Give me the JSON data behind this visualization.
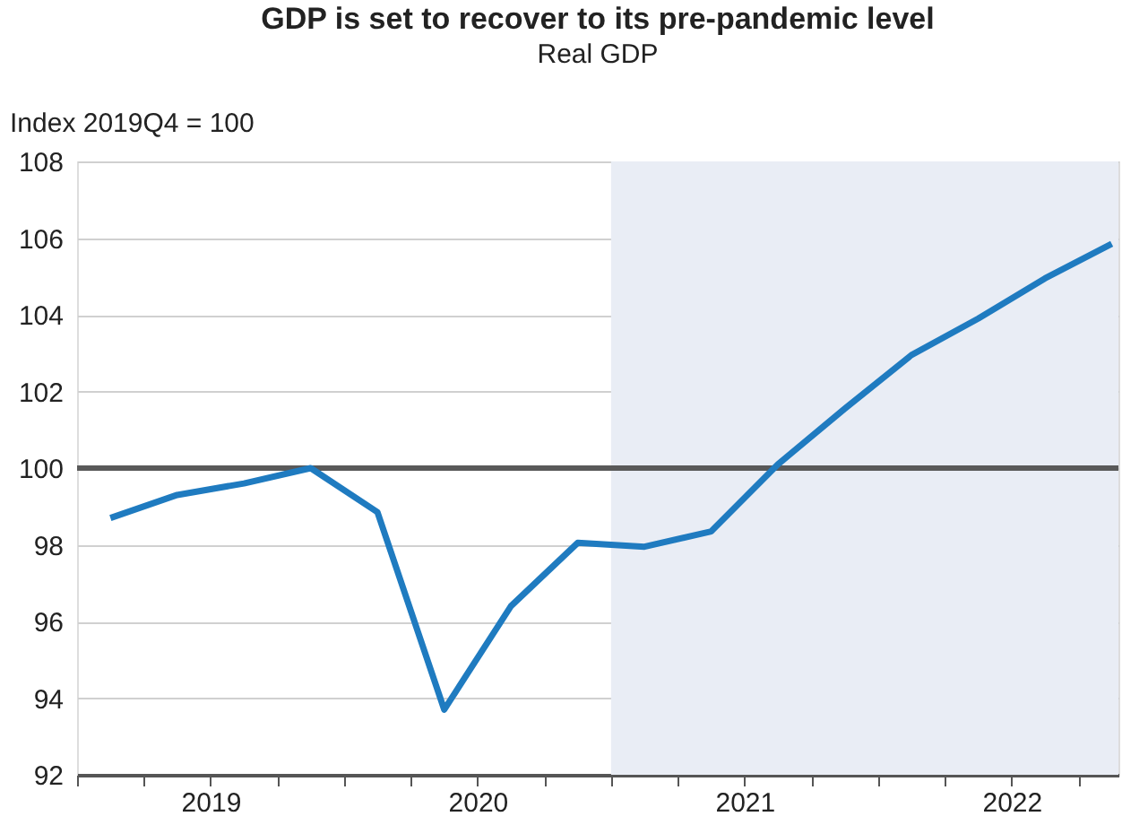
{
  "chart_data": {
    "type": "line",
    "title": "GDP is set to recover to its pre-pandemic level",
    "subtitle": "Real GDP",
    "ylabel": "Index 2019Q4 = 100",
    "x": [
      2019.125,
      2019.375,
      2019.625,
      2019.875,
      2020.125,
      2020.375,
      2020.625,
      2020.875,
      2021.125,
      2021.375,
      2021.625,
      2021.875,
      2022.125,
      2022.375,
      2022.625,
      2022.875
    ],
    "series": [
      {
        "color": "#1f7bc0",
        "values": [
          98.7,
          99.3,
          99.6,
          100.0,
          98.85,
          93.7,
          96.4,
          98.05,
          97.95,
          98.35,
          100.1,
          101.55,
          102.95,
          103.9,
          104.95,
          105.85
        ]
      }
    ],
    "xlim": [
      2019,
      2022.9
    ],
    "xticks": [
      {
        "value": 2019,
        "label": null
      },
      {
        "value": 2019.25,
        "label": null
      },
      {
        "value": 2019.5,
        "label": "2019"
      },
      {
        "value": 2019.75,
        "label": null
      },
      {
        "value": 2020,
        "label": null
      },
      {
        "value": 2020.25,
        "label": null
      },
      {
        "value": 2020.5,
        "label": "2020"
      },
      {
        "value": 2020.75,
        "label": null
      },
      {
        "value": 2021,
        "label": null
      },
      {
        "value": 2021.25,
        "label": null
      },
      {
        "value": 2021.5,
        "label": "2021"
      },
      {
        "value": 2021.75,
        "label": null
      },
      {
        "value": 2022,
        "label": null
      },
      {
        "value": 2022.25,
        "label": null
      },
      {
        "value": 2022.5,
        "label": "2022"
      },
      {
        "value": 2022.75,
        "label": null
      }
    ],
    "ylim": [
      92,
      108
    ],
    "yticks": [
      92,
      94,
      96,
      98,
      100,
      102,
      104,
      106,
      108
    ],
    "ref_lines": [
      {
        "axis": "y",
        "value": 100,
        "color": "#595959"
      }
    ],
    "bands": [
      {
        "axis": "x",
        "from": 2021,
        "to": 2022.9,
        "color": "#e9edf5"
      }
    ],
    "grid": "y",
    "marker": "none",
    "line_style": "solid"
  }
}
